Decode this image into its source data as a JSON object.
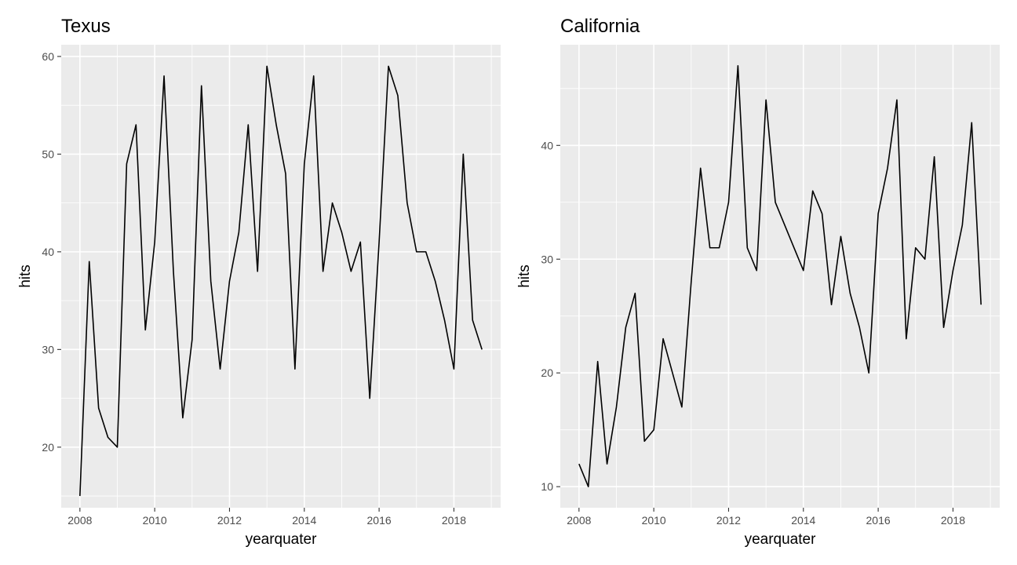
{
  "chart_data": [
    {
      "type": "line",
      "title": "Texus",
      "xlabel": "yearquater",
      "ylabel": "hits",
      "xlim": [
        2007.5,
        2019.25
      ],
      "ylim": [
        13.8,
        61.2
      ],
      "x_ticks": [
        2008,
        2010,
        2012,
        2014,
        2016,
        2018
      ],
      "y_ticks": [
        20,
        30,
        40,
        50,
        60
      ],
      "grid": true,
      "series": [
        {
          "x": [
            2008,
            2008.25,
            2008.5,
            2008.75,
            2009,
            2009.25,
            2009.5,
            2009.75,
            2010,
            2010.25,
            2010.5,
            2010.75,
            2011,
            2011.25,
            2011.5,
            2011.75,
            2012,
            2012.25,
            2012.5,
            2012.75,
            2013,
            2013.25,
            2013.5,
            2013.75,
            2014,
            2014.25,
            2014.5,
            2014.75,
            2015,
            2015.25,
            2015.5,
            2015.75,
            2016,
            2016.25,
            2016.5,
            2016.75,
            2017,
            2017.25,
            2017.5,
            2017.75,
            2018,
            2018.25,
            2018.5,
            2018.75
          ],
          "values": [
            15,
            39,
            24,
            21,
            20,
            49,
            53,
            32,
            41,
            58,
            38,
            23,
            31,
            57,
            37,
            28,
            37,
            42,
            53,
            38,
            59,
            53,
            48,
            28,
            49,
            58,
            38,
            45,
            42,
            38,
            41,
            25,
            41,
            59,
            56,
            45,
            40,
            40,
            37,
            33,
            28,
            50,
            33,
            30
          ]
        }
      ]
    },
    {
      "type": "line",
      "title": "California",
      "xlabel": "yearquater",
      "ylabel": "hits",
      "xlim": [
        2007.5,
        2019.25
      ],
      "ylim": [
        8.15,
        48.85
      ],
      "x_ticks": [
        2008,
        2010,
        2012,
        2014,
        2016,
        2018
      ],
      "y_ticks": [
        10,
        20,
        30,
        40
      ],
      "grid": true,
      "series": [
        {
          "x": [
            2008,
            2008.25,
            2008.5,
            2008.75,
            2009,
            2009.25,
            2009.5,
            2009.75,
            2010,
            2010.25,
            2010.5,
            2010.75,
            2011,
            2011.25,
            2011.5,
            2011.75,
            2012,
            2012.25,
            2012.5,
            2012.75,
            2013,
            2013.25,
            2013.5,
            2013.75,
            2014,
            2014.25,
            2014.5,
            2014.75,
            2015,
            2015.25,
            2015.5,
            2015.75,
            2016,
            2016.25,
            2016.5,
            2016.75,
            2017,
            2017.25,
            2017.5,
            2017.75,
            2018,
            2018.25,
            2018.5,
            2018.75
          ],
          "values": [
            12,
            10,
            21,
            12,
            17,
            24,
            27,
            14,
            15,
            23,
            20,
            17,
            28,
            38,
            31,
            31,
            35,
            47,
            31,
            29,
            44,
            35,
            33,
            31,
            29,
            36,
            34,
            26,
            32,
            27,
            24,
            20,
            34,
            38,
            44,
            23,
            31,
            30,
            39,
            24,
            29,
            33,
            42,
            26
          ]
        }
      ]
    }
  ]
}
